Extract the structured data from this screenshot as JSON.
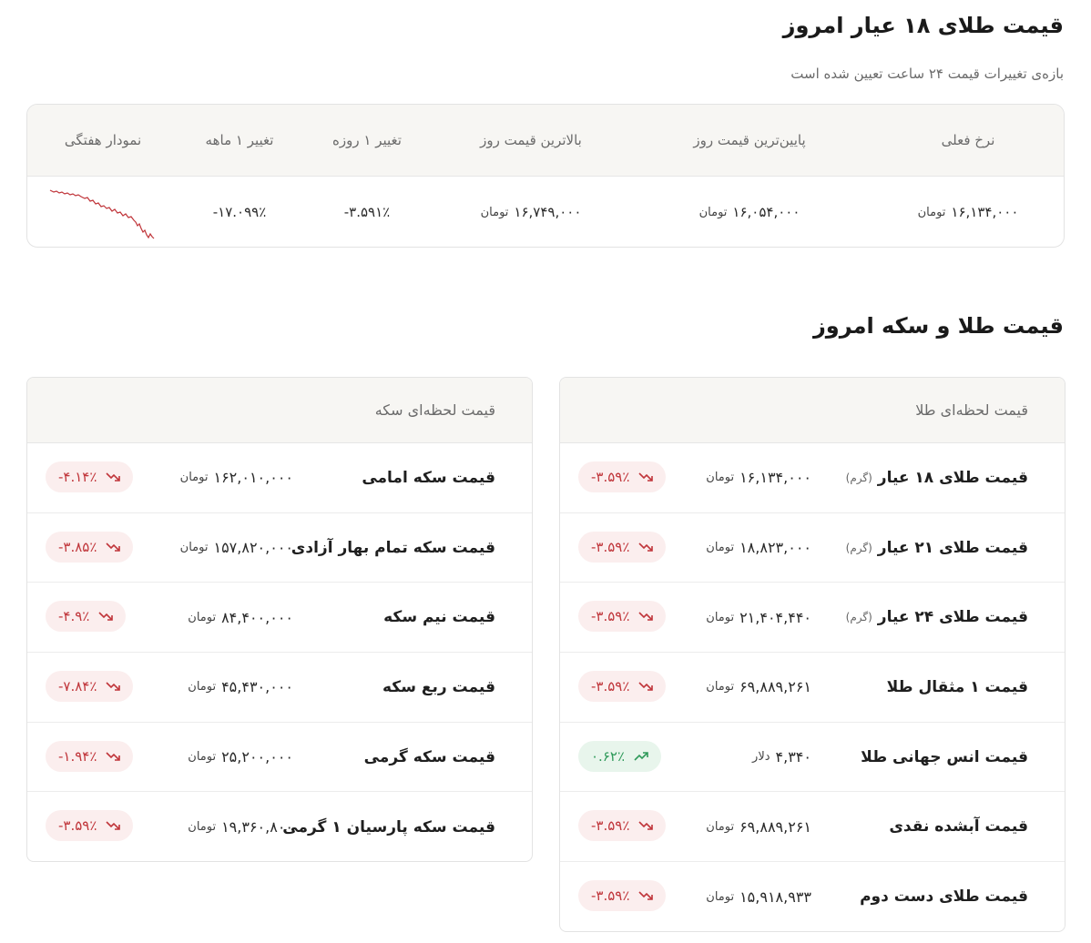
{
  "header": {
    "title": "قیمت طلای ۱۸ عیار امروز",
    "subtitle": "بازه‌ی تغییرات قیمت ۲۴ ساعت تعیین شده است"
  },
  "summary": {
    "columns": {
      "current": "نرخ فعلی",
      "low": "پایین‌ترین قیمت روز",
      "high": "بالاترین قیمت روز",
      "day_change": "تغییر ۱ روزه",
      "month_change": "تغییر ۱ ماهه",
      "weekly_chart": "نمودار هفتگی"
    },
    "values": {
      "current": "۱۶,۱۳۴,۰۰۰",
      "low": "۱۶,۰۵۴,۰۰۰",
      "high": "۱۶,۷۴۹,۰۰۰",
      "day_change": "-۳.۵۹۱٪",
      "month_change": "-۱۷.۰۹۹٪"
    },
    "unit": "تومان",
    "sparkline_color": "#c0353a"
  },
  "section2": {
    "title": "قیمت طلا و سکه امروز"
  },
  "gold_panel": {
    "title": "قیمت لحظه‌ای طلا",
    "rows": [
      {
        "label": "قیمت طلای ۱۸ عیار",
        "qualifier": "(گرم)",
        "price": "۱۶,۱۳۴,۰۰۰",
        "unit": "تومان",
        "change": "-۳.۵۹٪",
        "direction": "down"
      },
      {
        "label": "قیمت طلای ۲۱ عیار",
        "qualifier": "(گرم)",
        "price": "۱۸,۸۲۳,۰۰۰",
        "unit": "تومان",
        "change": "-۳.۵۹٪",
        "direction": "down"
      },
      {
        "label": "قیمت طلای ۲۴ عیار",
        "qualifier": "(گرم)",
        "price": "۲۱,۴۰۴,۴۴۰",
        "unit": "تومان",
        "change": "-۳.۵۹٪",
        "direction": "down"
      },
      {
        "label": "قیمت ۱ مثقال طلا",
        "qualifier": "",
        "price": "۶۹,۸۸۹,۲۶۱",
        "unit": "تومان",
        "change": "-۳.۵۹٪",
        "direction": "down"
      },
      {
        "label": "قیمت انس جهانی طلا",
        "qualifier": "",
        "price": "۴,۳۴۰",
        "unit": "دلار",
        "change": "۰.۶۲٪",
        "direction": "up"
      },
      {
        "label": "قیمت آبشده نقدی",
        "qualifier": "",
        "price": "۶۹,۸۸۹,۲۶۱",
        "unit": "تومان",
        "change": "-۳.۵۹٪",
        "direction": "down"
      },
      {
        "label": "قیمت طلای دست دوم",
        "qualifier": "",
        "price": "۱۵,۹۱۸,۹۳۳",
        "unit": "تومان",
        "change": "-۳.۵۹٪",
        "direction": "down"
      }
    ]
  },
  "coin_panel": {
    "title": "قیمت لحظه‌ای سکه",
    "rows": [
      {
        "label": "قیمت سکه امامی",
        "price": "۱۶۲,۰۱۰,۰۰۰",
        "unit": "تومان",
        "change": "-۴.۱۴٪",
        "direction": "down"
      },
      {
        "label": "قیمت سکه تمام بهار آزادی",
        "price": "۱۵۷,۸۲۰,۰۰۰",
        "unit": "تومان",
        "change": "-۳.۸۵٪",
        "direction": "down"
      },
      {
        "label": "قیمت نیم سکه",
        "price": "۸۴,۴۰۰,۰۰۰",
        "unit": "تومان",
        "change": "-۴.۹٪",
        "direction": "down"
      },
      {
        "label": "قیمت ربع سکه",
        "price": "۴۵,۴۳۰,۰۰۰",
        "unit": "تومان",
        "change": "-۷.۸۴٪",
        "direction": "down"
      },
      {
        "label": "قیمت سکه گرمی",
        "price": "۲۵,۲۰۰,۰۰۰",
        "unit": "تومان",
        "change": "-۱.۹۴٪",
        "direction": "down"
      },
      {
        "label": "قیمت سکه پارسیان ۱ گرمی",
        "price": "۱۹,۳۶۰,۸۰۰",
        "unit": "تومان",
        "change": "-۳.۵۹٪",
        "direction": "down"
      }
    ]
  },
  "colors": {
    "negative": "#c0353a",
    "positive": "#2f9a5a",
    "header_bg": "#f7f6f3"
  },
  "icons": {
    "down": "trend-down-icon",
    "up": "trend-up-icon"
  }
}
